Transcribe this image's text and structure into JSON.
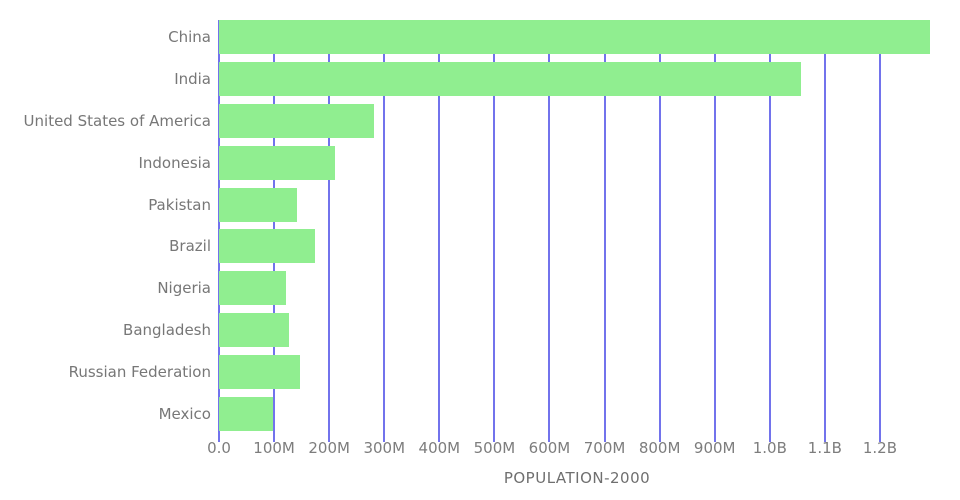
{
  "chart_data": {
    "type": "bar",
    "orientation": "horizontal",
    "title": "",
    "xlabel": "POPULATION-2000",
    "ylabel": "",
    "categories": [
      "China",
      "India",
      "United States of America",
      "Indonesia",
      "Pakistan",
      "Brazil",
      "Nigeria",
      "Bangladesh",
      "Russian Federation",
      "Mexico"
    ],
    "series": [
      {
        "name": "POPULATION-2000",
        "values_millions": [
          1290.6,
          1056.6,
          281.7,
          211.5,
          142.3,
          174.8,
          122.3,
          127.7,
          146.4,
          98.9
        ]
      }
    ],
    "xlim_millions": [
      0,
      1300
    ],
    "x_ticks": [
      {
        "value_millions": 0,
        "label": "0.0"
      },
      {
        "value_millions": 100,
        "label": "100M"
      },
      {
        "value_millions": 200,
        "label": "200M"
      },
      {
        "value_millions": 300,
        "label": "300M"
      },
      {
        "value_millions": 400,
        "label": "400M"
      },
      {
        "value_millions": 500,
        "label": "500M"
      },
      {
        "value_millions": 600,
        "label": "600M"
      },
      {
        "value_millions": 700,
        "label": "700M"
      },
      {
        "value_millions": 800,
        "label": "800M"
      },
      {
        "value_millions": 900,
        "label": "900M"
      },
      {
        "value_millions": 1000,
        "label": "1.0B"
      },
      {
        "value_millions": 1100,
        "label": "1.1B"
      },
      {
        "value_millions": 1200,
        "label": "1.2B"
      }
    ],
    "grid": "vertical",
    "legend": "none",
    "colors": {
      "bar": "#90EE90",
      "gridline": "#7273EC",
      "label_text": "#777777",
      "tick_text": "#7d7d7d",
      "axis_title_text": "#6f6f6f",
      "background": "#FFFFFF"
    }
  }
}
